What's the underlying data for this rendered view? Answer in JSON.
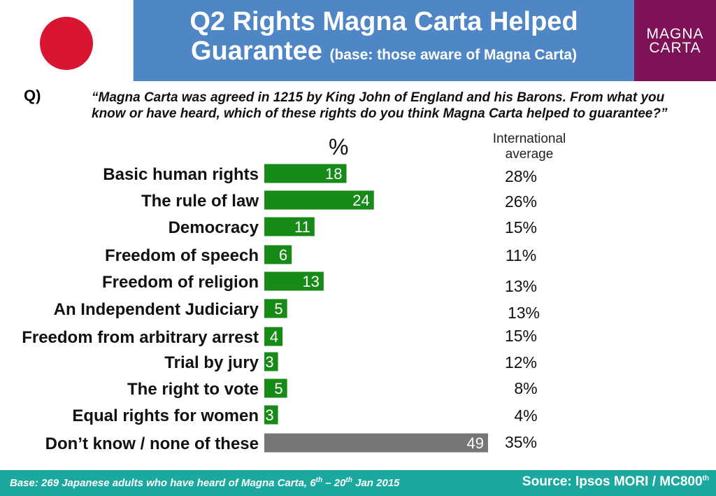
{
  "colors": {
    "header_bg": "#4f86c6",
    "logo_bg": "#7d1257",
    "flag_red": "#d91632",
    "bar_green": "#178a17",
    "bar_grey": "#767676",
    "footer_bg": "#1aa89f"
  },
  "header": {
    "title_line1": "Q2 Rights Magna Carta Helped",
    "title_line2": "Guarantee",
    "title_sub": "(base: those aware of Magna Carta)"
  },
  "logo": {
    "line1": "MAGNA",
    "line2": "CARTA"
  },
  "question": {
    "label": "Q)",
    "text": "“Magna Carta was agreed in 1215 by King John of England and his Barons. From what you know or have heard, which of these rights do you think Magna Carta helped to guarantee?”"
  },
  "chart_data": {
    "type": "bar",
    "orientation": "horizontal",
    "unit_label": "%",
    "intl_label": "International average",
    "categories": [
      "Basic human rights",
      "The rule of law",
      "Democracy",
      "Freedom of speech",
      "Freedom of religion",
      "An Independent Judiciary",
      "Freedom from arbitrary arrest",
      "Trial by jury",
      "The right to vote",
      "Equal rights for women",
      "Don’t know / none of these"
    ],
    "values": [
      18,
      24,
      11,
      6,
      13,
      5,
      4,
      3,
      5,
      3,
      49
    ],
    "international_average": [
      "28%",
      "26%",
      "15%",
      "11%",
      "13%",
      "13%",
      "15%",
      "12%",
      "8%",
      "4%",
      "35%"
    ],
    "highlight_last": true
  },
  "footer": {
    "base_text": "Base: 269 Japanese adults who have heard of Magna Carta, 6",
    "base_sup1": "th",
    "base_mid": " – 20",
    "base_sup2": "th",
    "base_end": " Jan 2015",
    "source_text": "Source: Ipsos MORI / MC800",
    "source_sup": "th"
  }
}
